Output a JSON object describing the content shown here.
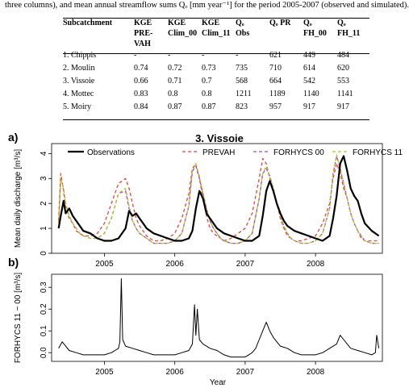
{
  "caption": "three columns), and mean annual streamflow sums Qₒ [mm year⁻¹] for the period 2005-2007 (observed and simulated).",
  "table": {
    "headers": [
      [
        "Subcatchment"
      ],
      [
        "KGE",
        "PRE-",
        "VAH"
      ],
      [
        "KGE",
        "Clim_00"
      ],
      [
        "KGE",
        "Clim_11"
      ],
      [
        "Qₒ",
        "Obs"
      ],
      [
        "Qₒ PR"
      ],
      [
        "Qₒ",
        "FH_00"
      ],
      [
        "Qₒ",
        "FH_11"
      ]
    ],
    "rows": [
      [
        "1. Chippis",
        "-",
        "-",
        "-",
        "-",
        "621",
        "449",
        "484"
      ],
      [
        "2. Moulin",
        "0.74",
        "0.72",
        "0.73",
        "735",
        "710",
        "614",
        "620"
      ],
      [
        "3. Vissoie",
        "0.66",
        "0.71",
        "0.7",
        "568",
        "664",
        "542",
        "553"
      ],
      [
        "4. Mottec",
        "0.83",
        "0.8",
        "0.8",
        "1211",
        "1189",
        "1140",
        "1141"
      ],
      [
        "5. Moiry",
        "0.84",
        "0.87",
        "0.87",
        "823",
        "957",
        "917",
        "917"
      ]
    ]
  },
  "panel_a": {
    "letter": "a)",
    "title": "3. Vissoie",
    "ylabel": "Mean daily discharge [m³/s]",
    "legend": [
      "Observations",
      "PREVAH",
      "FORHYCS 00",
      "FORHYCS 11"
    ],
    "colors": {
      "Observations": "#000000",
      "PREVAH": "#e8443a",
      "FORHYCS 00": "#b03cd8",
      "FORHYCS 11": "#a8c81e"
    }
  },
  "panel_b": {
    "letter": "b)",
    "ylabel": "FORHYCS 11 − 00 [m³/s]",
    "xlabel": "Year"
  },
  "chart_data": [
    {
      "type": "line",
      "title": "3. Vissoie",
      "ylabel": "Mean daily discharge [m³/s]",
      "xlim": [
        2004.25,
        2008.95
      ],
      "ylim": [
        0,
        4.4
      ],
      "xticks": [
        "2005",
        "2006",
        "2007",
        "2008"
      ],
      "yticks": [
        "0",
        "1",
        "2",
        "3",
        "4"
      ],
      "legend_position": "top",
      "series": [
        {
          "name": "Observations",
          "style": "solid",
          "x": [
            2004.35,
            2004.38,
            2004.42,
            2004.45,
            2004.5,
            2004.55,
            2004.6,
            2004.65,
            2004.7,
            2004.8,
            2004.9,
            2005.0,
            2005.1,
            2005.2,
            2005.3,
            2005.35,
            2005.4,
            2005.45,
            2005.5,
            2005.55,
            2005.6,
            2005.65,
            2005.7,
            2005.8,
            2005.9,
            2006.0,
            2006.1,
            2006.2,
            2006.25,
            2006.3,
            2006.35,
            2006.4,
            2006.45,
            2006.5,
            2006.55,
            2006.6,
            2006.65,
            2006.7,
            2006.8,
            2006.9,
            2007.0,
            2007.1,
            2007.2,
            2007.25,
            2007.3,
            2007.35,
            2007.4,
            2007.45,
            2007.5,
            2007.55,
            2007.6,
            2007.65,
            2007.7,
            2007.8,
            2007.9,
            2008.0,
            2008.1,
            2008.2,
            2008.25,
            2008.3,
            2008.35,
            2008.4,
            2008.45,
            2008.5,
            2008.55,
            2008.6,
            2008.65,
            2008.7,
            2008.8,
            2008.9
          ],
          "y": [
            1.0,
            1.5,
            2.1,
            1.6,
            1.8,
            1.5,
            1.3,
            1.1,
            0.9,
            0.8,
            0.6,
            0.5,
            0.5,
            0.6,
            1.0,
            1.7,
            1.5,
            1.6,
            1.4,
            1.2,
            1.0,
            0.9,
            0.8,
            0.7,
            0.6,
            0.5,
            0.5,
            0.6,
            0.9,
            1.8,
            2.5,
            2.2,
            1.6,
            1.4,
            1.2,
            1.0,
            0.9,
            0.8,
            0.7,
            0.6,
            0.5,
            0.5,
            0.7,
            1.5,
            2.5,
            2.9,
            2.5,
            2.0,
            1.6,
            1.3,
            1.1,
            1.0,
            0.9,
            0.8,
            0.7,
            0.6,
            0.5,
            0.7,
            1.4,
            2.3,
            3.6,
            3.9,
            3.3,
            2.6,
            2.3,
            2.1,
            1.6,
            1.2,
            0.9,
            0.7
          ]
        },
        {
          "name": "PREVAH",
          "style": "dashed",
          "x": [
            2004.35,
            2004.38,
            2004.42,
            2004.45,
            2004.5,
            2004.55,
            2004.6,
            2004.65,
            2004.7,
            2004.8,
            2004.9,
            2005.0,
            2005.1,
            2005.2,
            2005.3,
            2005.35,
            2005.4,
            2005.45,
            2005.5,
            2005.55,
            2005.6,
            2005.65,
            2005.7,
            2005.8,
            2005.9,
            2006.0,
            2006.1,
            2006.2,
            2006.25,
            2006.3,
            2006.35,
            2006.4,
            2006.45,
            2006.5,
            2006.55,
            2006.6,
            2006.65,
            2006.7,
            2006.8,
            2006.9,
            2007.0,
            2007.1,
            2007.2,
            2007.25,
            2007.3,
            2007.35,
            2007.4,
            2007.45,
            2007.5,
            2007.55,
            2007.6,
            2007.65,
            2007.7,
            2007.8,
            2007.9,
            2008.0,
            2008.1,
            2008.2,
            2008.25,
            2008.3,
            2008.35,
            2008.4,
            2008.45,
            2008.5,
            2008.55,
            2008.6,
            2008.65,
            2008.7,
            2008.8,
            2008.9
          ],
          "y": [
            1.3,
            3.2,
            2.5,
            1.8,
            1.4,
            1.2,
            0.9,
            0.8,
            0.7,
            0.7,
            0.8,
            1.2,
            2.0,
            2.8,
            3.0,
            2.6,
            2.0,
            1.4,
            1.1,
            0.9,
            0.7,
            0.6,
            0.5,
            0.5,
            0.6,
            0.8,
            1.4,
            2.4,
            3.4,
            3.6,
            3.0,
            2.2,
            1.5,
            1.0,
            0.8,
            0.7,
            0.6,
            0.5,
            0.6,
            0.8,
            1.0,
            1.6,
            3.0,
            3.8,
            3.6,
            3.0,
            2.6,
            2.0,
            1.4,
            1.0,
            0.7,
            0.6,
            0.5,
            0.5,
            0.6,
            0.7,
            1.2,
            2.0,
            3.0,
            3.6,
            3.2,
            2.6,
            2.2,
            1.6,
            1.2,
            0.9,
            0.6,
            0.5,
            0.5,
            0.5
          ]
        },
        {
          "name": "FORHYCS 00",
          "style": "dashed",
          "x": [
            2004.35,
            2004.38,
            2004.42,
            2004.45,
            2004.5,
            2004.55,
            2004.6,
            2004.65,
            2004.7,
            2004.8,
            2004.9,
            2005.0,
            2005.1,
            2005.2,
            2005.3,
            2005.35,
            2005.4,
            2005.45,
            2005.5,
            2005.55,
            2005.6,
            2005.65,
            2005.7,
            2005.8,
            2005.9,
            2006.0,
            2006.1,
            2006.2,
            2006.25,
            2006.3,
            2006.35,
            2006.4,
            2006.45,
            2006.5,
            2006.55,
            2006.6,
            2006.65,
            2006.7,
            2006.8,
            2006.9,
            2007.0,
            2007.1,
            2007.2,
            2007.25,
            2007.3,
            2007.35,
            2007.4,
            2007.45,
            2007.5,
            2007.55,
            2007.6,
            2007.65,
            2007.7,
            2007.8,
            2007.9,
            2008.0,
            2008.1,
            2008.2,
            2008.25,
            2008.3,
            2008.35,
            2008.4,
            2008.45,
            2008.5,
            2008.55,
            2008.6,
            2008.65,
            2008.7,
            2008.8,
            2008.9
          ],
          "y": [
            1.2,
            3.0,
            2.6,
            2.0,
            1.5,
            1.2,
            1.0,
            0.8,
            0.7,
            0.6,
            0.6,
            0.8,
            1.4,
            2.4,
            2.5,
            1.8,
            1.3,
            1.0,
            0.8,
            0.7,
            0.6,
            0.5,
            0.4,
            0.4,
            0.4,
            0.5,
            0.8,
            1.9,
            3.3,
            3.5,
            3.0,
            2.4,
            1.8,
            1.3,
            1.0,
            0.8,
            0.6,
            0.5,
            0.4,
            0.4,
            0.5,
            0.8,
            2.2,
            3.2,
            3.4,
            3.1,
            2.6,
            2.0,
            1.5,
            1.1,
            0.8,
            0.6,
            0.5,
            0.4,
            0.4,
            0.5,
            0.8,
            1.8,
            3.2,
            3.9,
            3.4,
            2.8,
            2.2,
            1.6,
            1.2,
            0.9,
            0.7,
            0.5,
            0.4,
            0.4
          ]
        },
        {
          "name": "FORHYCS 11",
          "style": "dashed",
          "x": [
            2004.35,
            2004.38,
            2004.42,
            2004.45,
            2004.5,
            2004.55,
            2004.6,
            2004.65,
            2004.7,
            2004.8,
            2004.9,
            2005.0,
            2005.1,
            2005.2,
            2005.3,
            2005.35,
            2005.4,
            2005.45,
            2005.5,
            2005.55,
            2005.6,
            2005.65,
            2005.7,
            2005.8,
            2005.9,
            2006.0,
            2006.1,
            2006.2,
            2006.25,
            2006.3,
            2006.35,
            2006.4,
            2006.45,
            2006.5,
            2006.55,
            2006.6,
            2006.65,
            2006.7,
            2006.8,
            2006.9,
            2007.0,
            2007.1,
            2007.2,
            2007.25,
            2007.3,
            2007.35,
            2007.4,
            2007.45,
            2007.5,
            2007.55,
            2007.6,
            2007.65,
            2007.7,
            2007.8,
            2007.9,
            2008.0,
            2008.1,
            2008.2,
            2008.25,
            2008.3,
            2008.35,
            2008.4,
            2008.45,
            2008.5,
            2008.55,
            2008.6,
            2008.65,
            2008.7,
            2008.8,
            2008.9
          ],
          "y": [
            1.2,
            3.0,
            2.6,
            2.0,
            1.5,
            1.2,
            1.0,
            0.8,
            0.7,
            0.6,
            0.6,
            0.8,
            1.4,
            2.4,
            2.6,
            1.9,
            1.3,
            1.0,
            0.8,
            0.7,
            0.6,
            0.5,
            0.4,
            0.4,
            0.4,
            0.5,
            0.8,
            1.9,
            3.3,
            3.6,
            3.1,
            2.4,
            1.8,
            1.3,
            1.0,
            0.8,
            0.6,
            0.5,
            0.4,
            0.4,
            0.5,
            0.8,
            2.2,
            3.2,
            3.5,
            3.1,
            2.6,
            2.0,
            1.5,
            1.1,
            0.8,
            0.6,
            0.5,
            0.4,
            0.4,
            0.5,
            0.8,
            1.8,
            3.2,
            3.95,
            3.4,
            2.8,
            2.2,
            1.6,
            1.2,
            0.9,
            0.7,
            0.5,
            0.4,
            0.4
          ]
        }
      ]
    },
    {
      "type": "line",
      "ylabel": "FORHYCS 11 − 00 [m³/s]",
      "xlabel": "Year",
      "xlim": [
        2004.25,
        2008.95
      ],
      "ylim": [
        -0.04,
        0.36
      ],
      "xticks": [
        "2005",
        "2006",
        "2007",
        "2008"
      ],
      "yticks": [
        "0.0",
        "0.1",
        "0.2",
        "0.3"
      ],
      "series": [
        {
          "name": "FORHYCS 11 − 00",
          "style": "solid",
          "x": [
            2004.35,
            2004.4,
            2004.45,
            2004.5,
            2004.6,
            2004.7,
            2004.8,
            2004.9,
            2005.0,
            2005.1,
            2005.15,
            2005.2,
            2005.22,
            2005.24,
            2005.26,
            2005.3,
            2005.4,
            2005.5,
            2005.6,
            2005.7,
            2005.8,
            2005.9,
            2006.0,
            2006.1,
            2006.2,
            2006.25,
            2006.28,
            2006.3,
            2006.32,
            2006.35,
            2006.4,
            2006.45,
            2006.5,
            2006.6,
            2006.7,
            2006.8,
            2006.9,
            2007.0,
            2007.05,
            2007.1,
            2007.15,
            2007.2,
            2007.25,
            2007.3,
            2007.35,
            2007.4,
            2007.45,
            2007.5,
            2007.6,
            2007.7,
            2007.8,
            2007.9,
            2008.0,
            2008.1,
            2008.2,
            2008.3,
            2008.35,
            2008.4,
            2008.45,
            2008.5,
            2008.6,
            2008.7,
            2008.8,
            2008.85,
            2008.87,
            2008.9
          ],
          "y": [
            0.02,
            0.05,
            0.03,
            0.01,
            0.0,
            -0.01,
            -0.01,
            -0.01,
            -0.01,
            0.0,
            0.01,
            0.02,
            0.05,
            0.34,
            0.06,
            0.03,
            0.02,
            0.01,
            0.0,
            -0.01,
            -0.01,
            -0.01,
            -0.01,
            0.0,
            0.01,
            0.04,
            0.22,
            0.08,
            0.2,
            0.06,
            0.04,
            0.03,
            0.02,
            0.01,
            -0.01,
            -0.02,
            -0.02,
            -0.02,
            -0.01,
            0.0,
            0.02,
            0.06,
            0.1,
            0.14,
            0.1,
            0.07,
            0.05,
            0.03,
            0.02,
            0.0,
            -0.01,
            -0.01,
            -0.01,
            0.0,
            0.02,
            0.04,
            0.08,
            0.06,
            0.04,
            0.02,
            0.01,
            0.0,
            -0.01,
            0.0,
            0.08,
            0.02
          ]
        }
      ]
    }
  ]
}
